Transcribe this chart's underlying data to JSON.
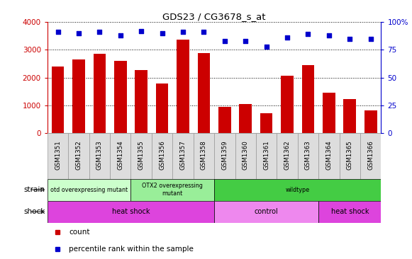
{
  "title": "GDS23 / CG3678_s_at",
  "samples": [
    "GSM1351",
    "GSM1352",
    "GSM1353",
    "GSM1354",
    "GSM1355",
    "GSM1356",
    "GSM1357",
    "GSM1358",
    "GSM1359",
    "GSM1360",
    "GSM1361",
    "GSM1362",
    "GSM1363",
    "GSM1364",
    "GSM1365",
    "GSM1366"
  ],
  "counts": [
    2400,
    2650,
    2850,
    2600,
    2280,
    1800,
    3380,
    2880,
    960,
    1050,
    720,
    2080,
    2450,
    1460,
    1230,
    830
  ],
  "percentiles": [
    91,
    90,
    91,
    88,
    92,
    90,
    91,
    91,
    83,
    83,
    78,
    86,
    89,
    88,
    85,
    85
  ],
  "bar_color": "#cc0000",
  "dot_color": "#0000cc",
  "ylim_left": [
    0,
    4000
  ],
  "ylim_right": [
    0,
    100
  ],
  "yticks_left": [
    0,
    1000,
    2000,
    3000,
    4000
  ],
  "yticks_right": [
    0,
    25,
    50,
    75,
    100
  ],
  "ytick_labels_right": [
    "0",
    "25",
    "50",
    "75",
    "100%"
  ],
  "strain_groups": [
    {
      "label": "otd overexpressing mutant",
      "start": 0,
      "end": 4,
      "color": "#ccffcc"
    },
    {
      "label": "OTX2 overexpressing\nmutant",
      "start": 4,
      "end": 8,
      "color": "#99ee99"
    },
    {
      "label": "wildtype",
      "start": 8,
      "end": 16,
      "color": "#44cc44"
    }
  ],
  "shock_groups": [
    {
      "label": "heat shock",
      "start": 0,
      "end": 8,
      "color": "#dd44dd"
    },
    {
      "label": "control",
      "start": 8,
      "end": 13,
      "color": "#ee88ee"
    },
    {
      "label": "heat shock",
      "start": 13,
      "end": 16,
      "color": "#dd44dd"
    }
  ],
  "legend_count_color": "#cc0000",
  "legend_dot_color": "#0000cc",
  "bg_color": "#ffffff",
  "left_axis_color": "#cc0000",
  "right_axis_color": "#0000cc",
  "xtick_bg_color": "#dddddd",
  "xtick_border_color": "#999999"
}
